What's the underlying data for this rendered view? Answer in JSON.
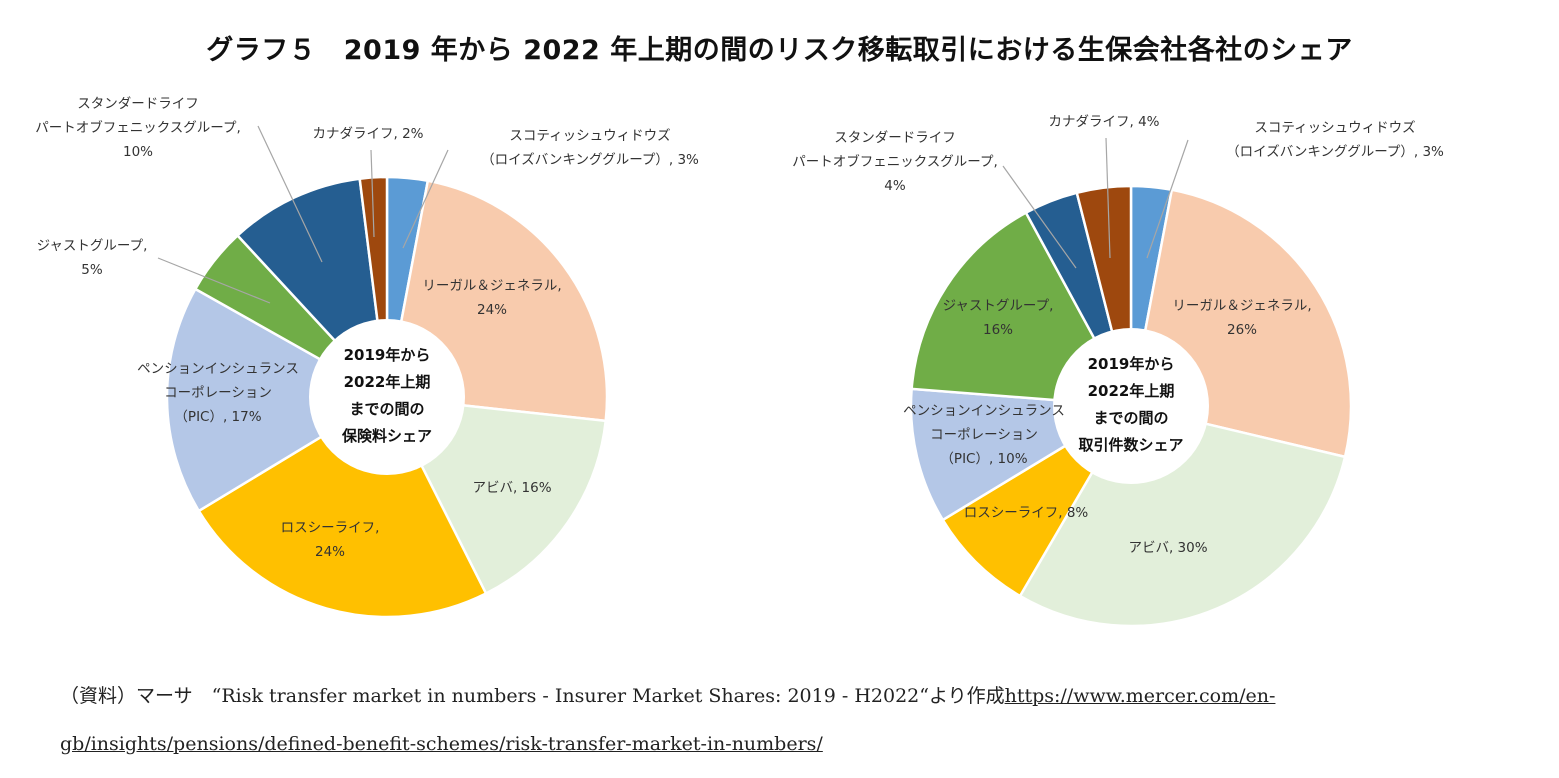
{
  "title": "グラフ５　2019 年から 2022 年上期の間のリスク移転取引における生保会社各社のシェア",
  "chart_data": [
    {
      "type": "pie",
      "center_label": [
        "2019年から",
        "2022年上期",
        "までの間の",
        "保険料シェア"
      ],
      "slices": [
        {
          "label": [
            "スコティッシュウィドウズ",
            "（ロイズバンキンググループ）, 3%"
          ],
          "value": 3,
          "color": "#5B9BD5"
        },
        {
          "label": [
            "リーガル＆ジェネラル,",
            "24%"
          ],
          "value": 24,
          "color": "#F8CBAD"
        },
        {
          "label": [
            "アビバ, 16%"
          ],
          "value": 16,
          "color": "#E2EFDA"
        },
        {
          "label": [
            "ロスシーライフ,",
            "24%"
          ],
          "value": 24,
          "color": "#FFC000"
        },
        {
          "label": [
            "ペンションインシュランス",
            "コーポレーション",
            "（PIC）, 17%"
          ],
          "value": 17,
          "color": "#B4C7E7"
        },
        {
          "label": [
            "ジャストグループ,",
            "5%"
          ],
          "value": 5,
          "color": "#70AD47"
        },
        {
          "label": [
            "スタンダードライフ",
            "パートオブフェニックスグループ,",
            "10%"
          ],
          "value": 10,
          "color": "#255E91"
        },
        {
          "label": [
            "カナダライフ, 2%"
          ],
          "value": 2,
          "color": "#9E480E"
        }
      ]
    },
    {
      "type": "pie",
      "center_label": [
        "2019年から",
        "2022年上期",
        "までの間の",
        "取引件数シェア"
      ],
      "slices": [
        {
          "label": [
            "スコティッシュウィドウズ",
            "（ロイズバンキンググループ）, 3%"
          ],
          "value": 3,
          "color": "#5B9BD5"
        },
        {
          "label": [
            "リーガル＆ジェネラル,",
            "26%"
          ],
          "value": 26,
          "color": "#F8CBAD"
        },
        {
          "label": [
            "アビバ, 30%"
          ],
          "value": 30,
          "color": "#E2EFDA"
        },
        {
          "label": [
            "ロスシーライフ, 8%"
          ],
          "value": 8,
          "color": "#FFC000"
        },
        {
          "label": [
            "ペンションインシュランス",
            "コーポレーション",
            "（PIC）, 10%"
          ],
          "value": 10,
          "color": "#B4C7E7"
        },
        {
          "label": [
            "ジャストグループ,",
            "16%"
          ],
          "value": 16,
          "color": "#70AD47"
        },
        {
          "label": [
            "スタンダードライフ",
            "パートオブフェニックスグループ,",
            "4%"
          ],
          "value": 4,
          "color": "#255E91"
        },
        {
          "label": [
            "カナダライフ, 4%"
          ],
          "value": 4,
          "color": "#9E480E"
        }
      ]
    }
  ],
  "source": {
    "text": "（資料）マーサ　“Risk transfer market in numbers - Insurer Market Shares: 2019 - H2022“より作成",
    "link": "https://www.mercer.com/en-gb/insights/pensions/defined-benefit-schemes/risk-transfer-market-in-numbers/"
  }
}
